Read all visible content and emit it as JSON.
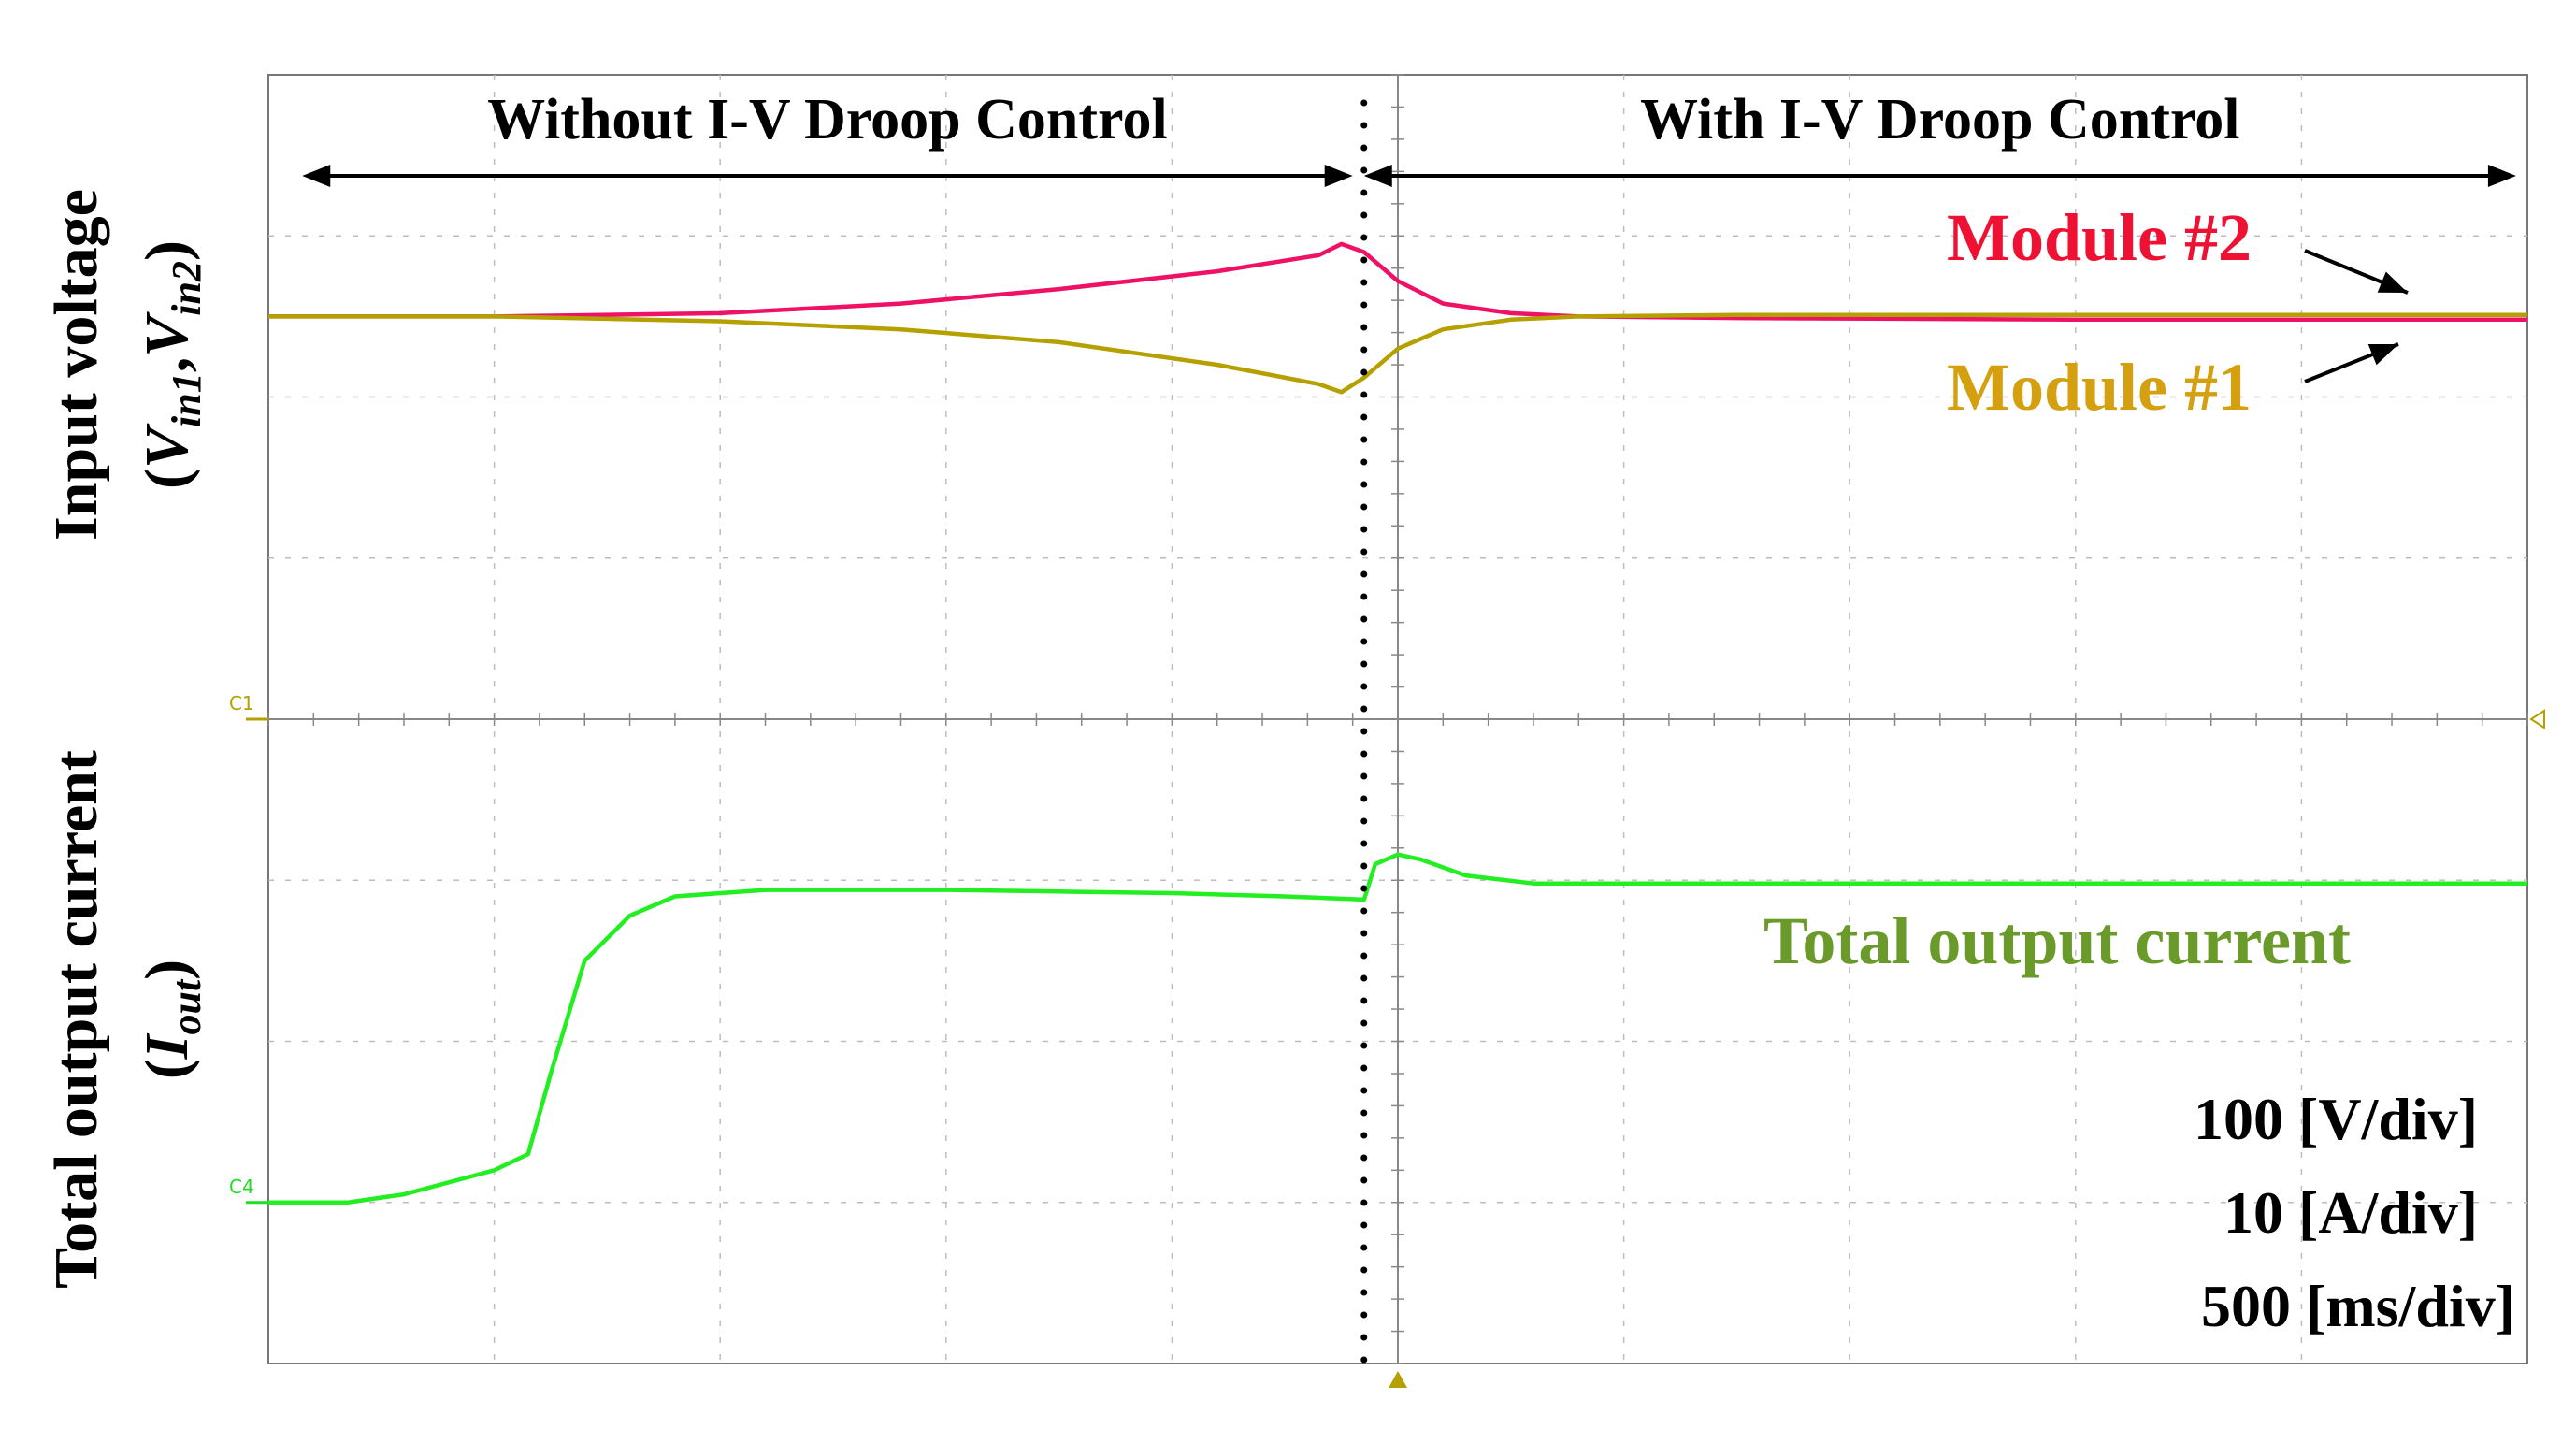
{
  "chart_data": {
    "type": "line",
    "title": "",
    "x_range": [
      0,
      10
    ],
    "y_range": [
      -4,
      4
    ],
    "grid": true,
    "grid_divisions": {
      "x": 10,
      "y": 8
    },
    "x_label": "",
    "y_labels": {
      "upper": {
        "line1": "Input voltage",
        "line2_prefix": "(",
        "v": "V",
        "sub1": "in1",
        "comma": ",",
        "sub2": "in2",
        "suffix": ")"
      },
      "lower": {
        "line1": "Total output current",
        "line2_prefix": "(",
        "i": "I",
        "sub": "out",
        "suffix": ")"
      }
    },
    "region_labels": [
      {
        "text": "Without I-V Droop Control",
        "x_start": 0.15,
        "x_end": 4.8
      },
      {
        "text": "With I-V Droop Control",
        "x_start": 4.85,
        "x_end": 9.95
      }
    ],
    "divider_x": 4.85,
    "scale_text": [
      "100 [V/div]",
      "10 [A/div]",
      "500 [ms/div]"
    ],
    "channel_markers": [
      {
        "id": "C1",
        "text": "C1",
        "y": 0,
        "color": "#b5a000"
      },
      {
        "id": "C4",
        "text": "C4",
        "y": -3,
        "color": "#22dd22"
      }
    ],
    "series": [
      {
        "name": "Module #2",
        "color": "#ee1166",
        "label_color": "#ee1133",
        "x": [
          0,
          1,
          2,
          2.8,
          3.5,
          4.2,
          4.65,
          4.75,
          4.85,
          5.0,
          5.2,
          5.5,
          5.8,
          6.5,
          8,
          10
        ],
        "y": [
          2.5,
          2.5,
          2.52,
          2.58,
          2.67,
          2.78,
          2.88,
          2.95,
          2.9,
          2.72,
          2.58,
          2.52,
          2.5,
          2.49,
          2.48,
          2.48
        ]
      },
      {
        "name": "Module #1",
        "color": "#b5a000",
        "label_color": "#d4a010",
        "x": [
          0,
          1,
          2,
          2.8,
          3.5,
          4.2,
          4.65,
          4.75,
          4.85,
          5.0,
          5.2,
          5.5,
          5.8,
          6.5,
          8,
          10
        ],
        "y": [
          2.5,
          2.5,
          2.47,
          2.42,
          2.34,
          2.2,
          2.08,
          2.03,
          2.12,
          2.3,
          2.42,
          2.48,
          2.5,
          2.51,
          2.51,
          2.51
        ]
      },
      {
        "name": "Total output current",
        "color": "#22ee22",
        "label_color": "#6a9a2a",
        "x": [
          0,
          0.35,
          0.6,
          1.0,
          1.15,
          1.25,
          1.4,
          1.6,
          1.8,
          2.2,
          3.0,
          3.5,
          4.0,
          4.5,
          4.85,
          4.9,
          5.0,
          5.1,
          5.3,
          5.6,
          6,
          7,
          8,
          9,
          10
        ],
        "y": [
          -3.0,
          -3.0,
          -2.95,
          -2.8,
          -2.7,
          -2.2,
          -1.5,
          -1.22,
          -1.1,
          -1.06,
          -1.06,
          -1.07,
          -1.08,
          -1.1,
          -1.12,
          -0.9,
          -0.84,
          -0.87,
          -0.97,
          -1.02,
          -1.02,
          -1.02,
          -1.02,
          -1.02,
          -1.02
        ]
      }
    ]
  }
}
